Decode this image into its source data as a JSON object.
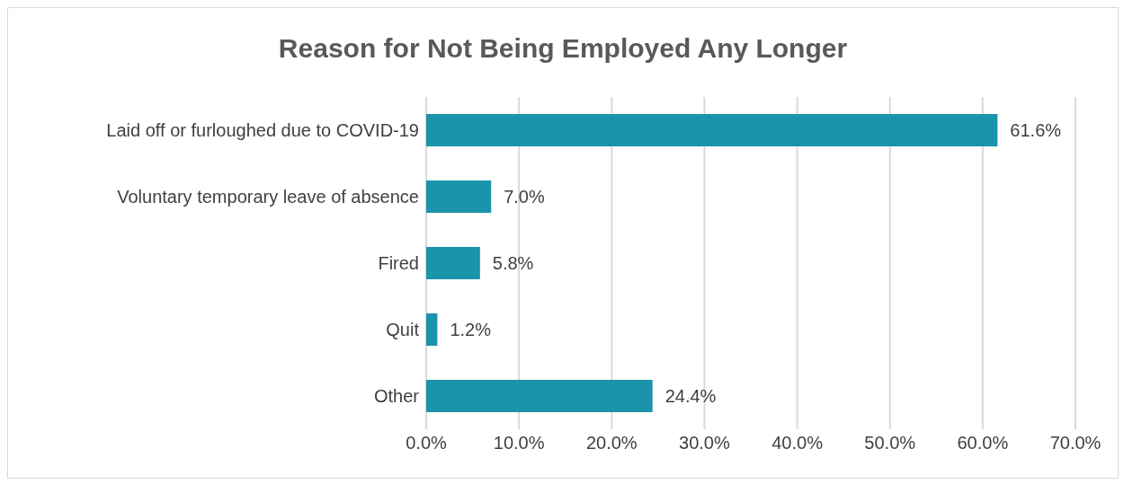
{
  "chart_data": {
    "type": "bar",
    "orientation": "horizontal",
    "title": "Reason for Not Being Employed Any Longer",
    "categories": [
      "Laid off or furloughed due to COVID-19",
      "Voluntary temporary leave of absence",
      "Fired",
      "Quit",
      "Other"
    ],
    "values": [
      61.6,
      7.0,
      5.8,
      1.2,
      24.4
    ],
    "value_labels": [
      "61.6%",
      "7.0%",
      "5.8%",
      "1.2%",
      "24.4%"
    ],
    "color": "#1b93ab",
    "xlim": [
      0,
      70
    ],
    "xticks": [
      {
        "value": 0,
        "label": "0.0%"
      },
      {
        "value": 10,
        "label": "10.0%"
      },
      {
        "value": 20,
        "label": "20.0%"
      },
      {
        "value": 30,
        "label": "30.0%"
      },
      {
        "value": 40,
        "label": "40.0%"
      },
      {
        "value": 50,
        "label": "50.0%"
      },
      {
        "value": 60,
        "label": "60.0%"
      },
      {
        "value": 70,
        "label": "70.0%"
      }
    ],
    "grid": "x",
    "legend": false
  }
}
